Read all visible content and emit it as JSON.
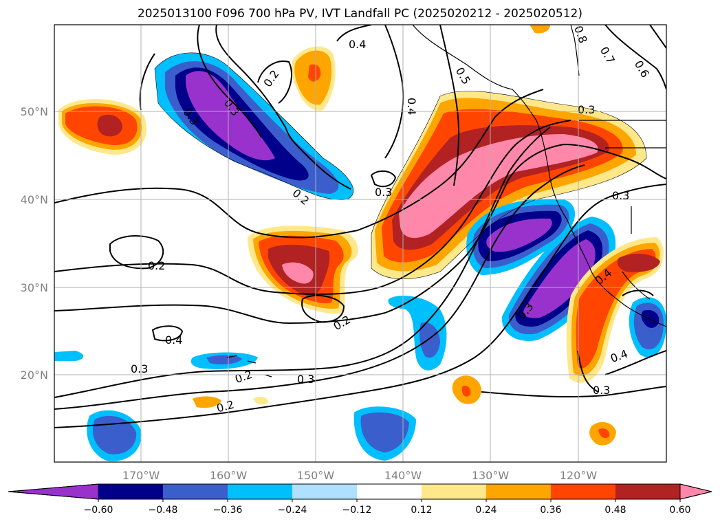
{
  "title": "2025013100 F096 700 hPa PV, IVT Landfall PC (2025020212 - 2025020512)",
  "map": {
    "lat_ticks": [
      "20°N",
      "30°N",
      "40°N",
      "50°N"
    ],
    "lon_ticks": [
      "170°W",
      "160°W",
      "150°W",
      "140°W",
      "130°W",
      "120°W"
    ],
    "gridlines": true
  },
  "colorbar": {
    "levels": [
      "−0.60",
      "−0.48",
      "−0.36",
      "−0.24",
      "−0.12",
      "0.12",
      "0.24",
      "0.36",
      "0.48",
      "0.60"
    ],
    "colors": [
      "#9932cc",
      "#00008b",
      "#3a5fcd",
      "#00bfff",
      "#b0e0ff",
      "#ffffff",
      "#ffe88a",
      "#ffa500",
      "#ff4500",
      "#b22222",
      "#ff88aa"
    ],
    "extend": "both"
  },
  "contour_labels": [
    "0.4",
    "0.2",
    "0.3",
    "0.4",
    "0.8",
    "0.7",
    "0.6",
    "0.5",
    "0.3",
    "0.3",
    "0.2",
    "0.3",
    "0.3",
    "0.2",
    "0.4",
    "0.3",
    "0.2",
    "0.4",
    "0.3",
    "0.2",
    "0.3",
    "0.2"
  ]
}
